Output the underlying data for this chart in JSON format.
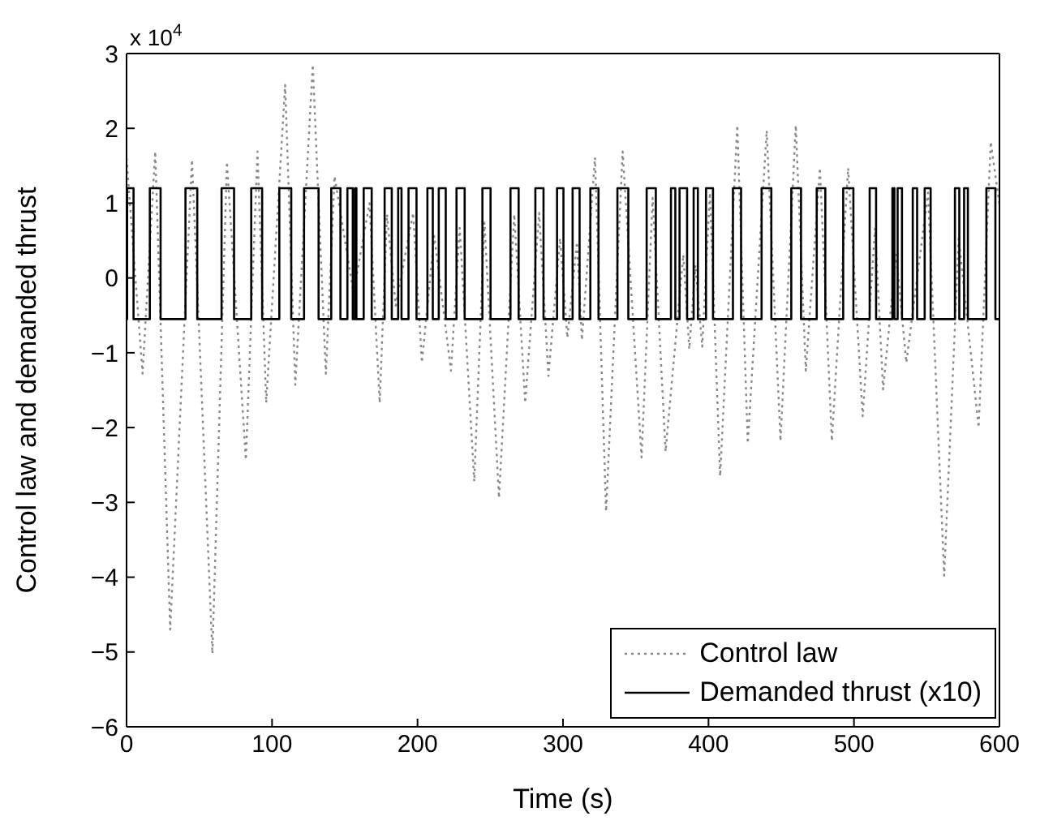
{
  "chart_data": {
    "type": "line",
    "xlabel": "Time (s)",
    "ylabel": "Control law and demanded thrust",
    "annotations": [
      "x 10$^{4}$"
    ],
    "xlim": [
      0,
      600
    ],
    "xticks": [
      0,
      100,
      200,
      300,
      400,
      500,
      600
    ],
    "ylim": [
      -6,
      3
    ],
    "yticks": [
      -6,
      -5,
      -4,
      -3,
      -2,
      -1,
      0,
      1,
      2,
      3
    ],
    "legend": "bottom right",
    "marker": "none",
    "series": [
      {
        "name": "Control law",
        "line_style": "dotted",
        "color": "#888888",
        "x": [
          0,
          11,
          19.7,
          30,
          45,
          59,
          69,
          82,
          90,
          96,
          109,
          116,
          128,
          137,
          143,
          156,
          167,
          174,
          179,
          185,
          197,
          203,
          211.5,
          223,
          229,
          239,
          246,
          256,
          266.5,
          274,
          283.6,
          290,
          298,
          303,
          309.6,
          313,
          322,
          329.6,
          341,
          354,
          361.6,
          370.5,
          382.7,
          386.8,
          391,
          395.7,
          401,
          408,
          419.8,
          427,
          440,
          449.5,
          460,
          466.9,
          476.6,
          484.8,
          496,
          506,
          514.5,
          520,
          529,
          536,
          550.9,
          562,
          572,
          585.7,
          594,
          600
        ],
        "values": [
          1.6,
          -1.28,
          1.69,
          -4.7,
          1.58,
          -5.02,
          1.55,
          -2.43,
          1.69,
          -1.67,
          2.58,
          -1.43,
          2.85,
          -1.28,
          1.36,
          -0.2,
          1.0,
          -1.67,
          0.85,
          -0.37,
          0.87,
          -1.13,
          0.56,
          -1.24,
          0.67,
          -2.72,
          0.74,
          -2.94,
          0.85,
          -1.67,
          0.87,
          -1.31,
          0.53,
          -0.8,
          0.48,
          -0.83,
          1.61,
          -3.12,
          1.69,
          -2.4,
          1.07,
          -2.32,
          0.31,
          -0.95,
          0.17,
          -0.92,
          1.14,
          -2.65,
          2.04,
          -2.21,
          1.97,
          -2.18,
          2.04,
          -1.24,
          1.47,
          -2.18,
          1.47,
          -1.85,
          0.67,
          -1.49,
          0.31,
          -1.13,
          1.14,
          -3.98,
          0.53,
          -2.0,
          1.82,
          0.98
        ]
      },
      {
        "name": "Demanded thrust (x10)",
        "type": "step",
        "line_style": "solid",
        "color": "#000000",
        "x": [
          0,
          0.4,
          4.8,
          16,
          23.4,
          40.5,
          48.6,
          65.3,
          73.9,
          85.7,
          93.2,
          105,
          113.2,
          122,
          132,
          140.7,
          147,
          151.8,
          155.5,
          157,
          158,
          163,
          168.5,
          177.4,
          182.3,
          186.7,
          189,
          193.8,
          199.3,
          206.8,
          210.5,
          214.6,
          219.4,
          226.8,
          232.4,
          244.6,
          250.2,
          263.9,
          269.5,
          281,
          286.6,
          295.9,
          300.3,
          306.6,
          311.4,
          318.8,
          324.4,
          337.4,
          344.9,
          357.5,
          363.8,
          374.2,
          377.2,
          380.1,
          385.3,
          389.8,
          392.7,
          398.3,
          403.1,
          416.8,
          422.4,
          436.5,
          443.2,
          456.9,
          463.6,
          474.4,
          480.3,
          492.6,
          499.6,
          510.8,
          515.2,
          526.4,
          527.8,
          530,
          533,
          540.4,
          543.4,
          548.6,
          552.7,
          569.4,
          572.4,
          575.7,
          578.3,
          591,
          597.2,
          600
        ],
        "values": [
          -0.55,
          1.2,
          -0.55,
          1.2,
          -0.55,
          1.2,
          -0.55,
          1.2,
          -0.55,
          1.2,
          -0.55,
          1.2,
          -0.55,
          1.2,
          -0.55,
          1.2,
          -0.55,
          1.2,
          -0.55,
          1.2,
          -0.55,
          1.2,
          -0.55,
          1.2,
          -0.55,
          1.2,
          -0.55,
          1.2,
          -0.55,
          1.2,
          -0.55,
          1.2,
          -0.55,
          1.2,
          -0.55,
          1.2,
          -0.55,
          1.2,
          -0.55,
          1.2,
          -0.55,
          1.2,
          -0.55,
          1.2,
          -0.55,
          1.2,
          -0.55,
          1.2,
          -0.55,
          1.2,
          -0.55,
          1.2,
          -0.55,
          1.2,
          -0.55,
          1.2,
          -0.55,
          1.2,
          -0.55,
          1.2,
          -0.55,
          1.2,
          -0.55,
          1.2,
          -0.55,
          1.2,
          -0.55,
          1.2,
          -0.55,
          1.2,
          -0.55,
          1.2,
          -0.55,
          1.2,
          -0.55,
          1.2,
          -0.55,
          1.2,
          -0.55,
          1.2,
          -0.55,
          1.2,
          -0.55,
          1.2,
          -0.55,
          -0.55
        ]
      }
    ]
  }
}
